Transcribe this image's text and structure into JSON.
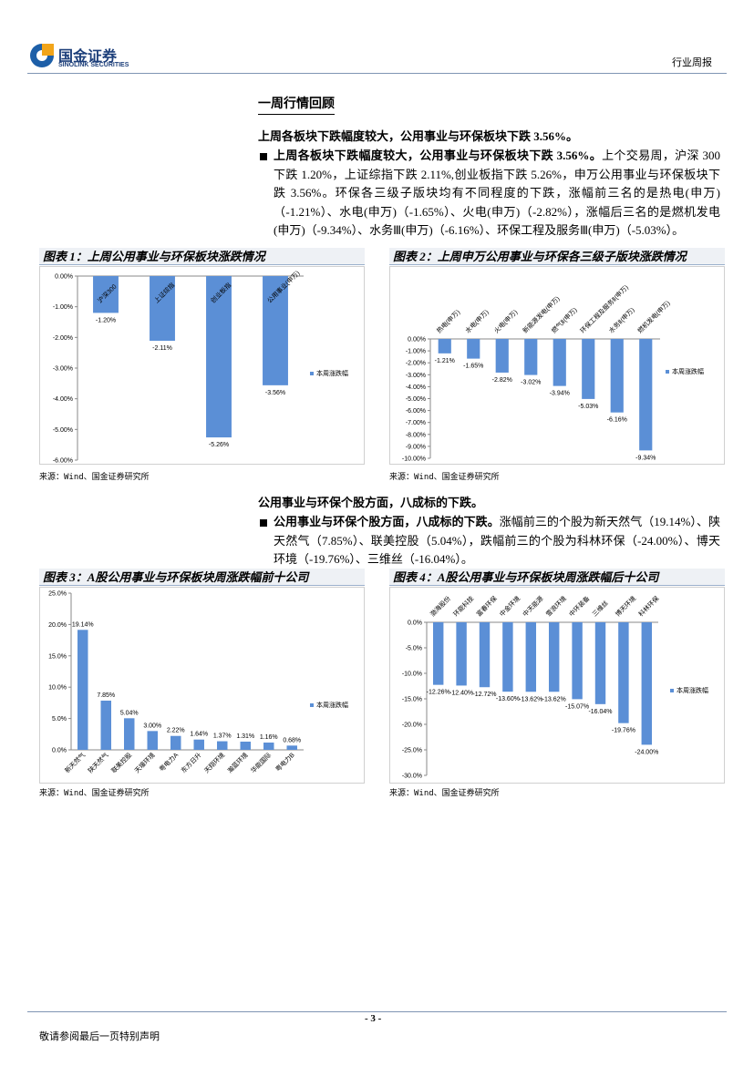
{
  "header": {
    "logo": "国金证券",
    "logo_en": "SINOLINK SECURITIES",
    "report_type": "行业周报"
  },
  "section_title": "一周行情回顾",
  "subheads": [
    "上周各板块下跌幅度较大，公用事业与环保板块下跌 3.56%。",
    "公用事业与环保个股方面，八成标的下跌。"
  ],
  "bullets": [
    {
      "bold": "上周各板块下跌幅度较大，公用事业与环保板块下跌 3.56%。",
      "text": "上个交易周，沪深 300 下跌 1.20%，上证综指下跌 2.11%,创业板指下跌 5.26%，申万公用事业与环保板块下跌 3.56%。环保各三级子版块均有不同程度的下跌，涨幅前三名的是热电(申万)（-1.21%）、水电(申万)（-1.65%）、火电(申万)（-2.82%），涨幅后三名的是燃机发电(申万)（-9.34%）、水务Ⅲ(申万)（-6.16%）、环保工程及服务Ⅲ(申万)（-5.03%）。"
    },
    {
      "bold": "公用事业与环保个股方面，八成标的下跌。",
      "text": "涨幅前三的个股为新天然气（19.14%）、陕天然气（7.85%）、联美控股（5.04%），跌幅前三的个股为科林环保（-24.00%）、博天环境（-19.76%）、三维丝（-16.04%）。"
    }
  ],
  "chart_titles": [
    "图表 1：上周公用事业与环保板块涨跌情况",
    "图表 2：上周申万公用事业与环保各三级子版块涨跌情况",
    "图表 3：A股公用事业与环保板块周涨跌幅前十公司",
    "图表 4：A股公用事业与环保板块周涨跌幅后十公司"
  ],
  "sources": [
    "来源：Wind、国金证券研究所",
    "来源：Wind、国金证券研究所",
    "来源：Wind、国金证券研究所",
    "来源：Wind、国金证券研究所"
  ],
  "chart_data": [
    {
      "type": "bar",
      "categories": [
        "沪深300",
        "上证综指",
        "创业板指",
        "公用事业(申万)"
      ],
      "series": [
        {
          "name": "本周涨跌幅",
          "color": "#5b8fd6",
          "values": [
            -1.2,
            -2.11,
            -5.26,
            -3.56
          ],
          "value_labels": [
            "-1.20%",
            "-2.11%",
            "-5.26%",
            "-3.56%"
          ]
        }
      ],
      "ylim": [
        -6,
        0
      ],
      "yticks": [
        {
          "value": 0,
          "label": "0.00%"
        },
        {
          "value": -1,
          "label": "-1.00%"
        },
        {
          "value": -2,
          "label": "-2.00%"
        },
        {
          "value": -3,
          "label": "-3.00%"
        },
        {
          "value": -4,
          "label": "-4.00%"
        },
        {
          "value": -5,
          "label": "-5.00%"
        },
        {
          "value": -6,
          "label": "-6.00%"
        }
      ],
      "legend": "right"
    },
    {
      "type": "bar",
      "categories": [
        "热电(申万)",
        "水电(申万)",
        "火电(申万)",
        "新能源发电(申万)",
        "燃气Ⅱ(申万)",
        "环保工程及服务Ⅱ(申万)",
        "水务Ⅱ(申万)",
        "燃机发电(申万)"
      ],
      "series": [
        {
          "name": "本周涨跌幅",
          "color": "#5b8fd6",
          "values": [
            -1.21,
            -1.65,
            -2.82,
            -3.02,
            -3.94,
            -5.03,
            -6.16,
            -9.34
          ],
          "value_labels": [
            "-1.21%",
            "-1.65%",
            "-2.82%",
            "-3.02%",
            "-3.94%",
            "-5.03%",
            "-6.16%",
            "-9.34%"
          ]
        }
      ],
      "ylim": [
        -10,
        0
      ],
      "yticks": [
        {
          "value": 0,
          "label": "0.00%"
        },
        {
          "value": -1,
          "label": "-1.00%"
        },
        {
          "value": -2,
          "label": "-2.00%"
        },
        {
          "value": -3,
          "label": "-3.00%"
        },
        {
          "value": -4,
          "label": "-4.00%"
        },
        {
          "value": -5,
          "label": "-5.00%"
        },
        {
          "value": -6,
          "label": "-6.00%"
        },
        {
          "value": -7,
          "label": "-7.00%"
        },
        {
          "value": -8,
          "label": "-8.00%"
        },
        {
          "value": -9,
          "label": "-9.00%"
        },
        {
          "value": -10,
          "label": "-10.00%"
        }
      ],
      "legend": "right"
    },
    {
      "type": "bar",
      "categories": [
        "新天然气",
        "陕天然气",
        "联美控股",
        "天壕环境",
        "粤电力A",
        "东方日升",
        "天翔环境",
        "瀚蓝环境",
        "华能国际",
        "粤电力B"
      ],
      "series": [
        {
          "name": "本周涨跌幅",
          "color": "#5b8fd6",
          "values": [
            19.14,
            7.85,
            5.04,
            3.0,
            2.22,
            1.64,
            1.37,
            1.31,
            1.16,
            0.68
          ],
          "value_labels": [
            "19.14%",
            "7.85%",
            "5.04%",
            "3.00%",
            "2.22%",
            "1.64%",
            "1.37%",
            "1.31%",
            "1.16%",
            "0.68%"
          ]
        }
      ],
      "ylim": [
        0,
        25
      ],
      "yticks": [
        {
          "value": 0,
          "label": "0.0%"
        },
        {
          "value": 5,
          "label": "5.0%"
        },
        {
          "value": 10,
          "label": "10.0%"
        },
        {
          "value": 15,
          "label": "15.0%"
        },
        {
          "value": 20,
          "label": "20.0%"
        },
        {
          "value": 25,
          "label": "25.0%"
        }
      ],
      "legend": "right"
    },
    {
      "type": "bar",
      "categories": [
        "渤海股份",
        "环能科技",
        "富春环保",
        "中金环境",
        "中天能源",
        "雪浪环境",
        "中环装备",
        "三维丝",
        "博天环境",
        "科林环保"
      ],
      "series": [
        {
          "name": "本周涨跌幅",
          "color": "#5b8fd6",
          "values": [
            -12.26,
            -12.4,
            -12.72,
            -13.6,
            -13.62,
            -13.62,
            -15.07,
            -16.04,
            -19.76,
            -24.0
          ],
          "value_labels": [
            "-12.26%",
            "-12.40%",
            "-12.72%",
            "-13.60%",
            "-13.62%",
            "-13.62%",
            "-15.07%",
            "-16.04%",
            "-19.76%",
            "-24.00%"
          ]
        }
      ],
      "ylim": [
        -30,
        0
      ],
      "yticks": [
        {
          "value": 0,
          "label": "0.0%"
        },
        {
          "value": -5,
          "label": "-5.0%"
        },
        {
          "value": -10,
          "label": "-10.0%"
        },
        {
          "value": -15,
          "label": "-15.0%"
        },
        {
          "value": -20,
          "label": "-20.0%"
        },
        {
          "value": -25,
          "label": "-25.0%"
        },
        {
          "value": -30,
          "label": "-30.0%"
        }
      ],
      "legend": "right"
    }
  ],
  "footer": {
    "page": "- 3 -",
    "disclaimer": "敬请参阅最后一页特别声明"
  }
}
